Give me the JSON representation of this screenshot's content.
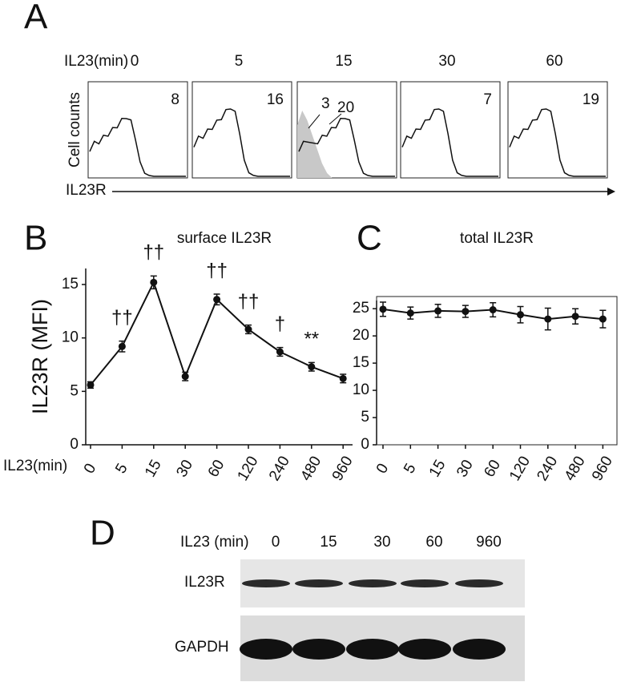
{
  "figure": {
    "panel_labels": [
      "A",
      "B",
      "C",
      "D"
    ]
  },
  "flow": {
    "x_title": "IL23(min)",
    "times": [
      0,
      5,
      15,
      30,
      60
    ],
    "mfi": [
      8,
      16,
      20,
      7,
      19
    ],
    "control_mfi": 3,
    "y_label": "Cell counts",
    "x_label": "IL23R"
  },
  "chart_data": [
    {
      "type": "line",
      "title": "surface IL23R",
      "y_label": "IL23R (MFI)",
      "x_label": "IL23(min)",
      "categories": [
        "0",
        "5",
        "15",
        "30",
        "60",
        "120",
        "240",
        "480",
        "960"
      ],
      "values": [
        5.6,
        9.2,
        15.2,
        6.4,
        13.6,
        10.8,
        8.7,
        7.3,
        6.2
      ],
      "errors": [
        0.3,
        0.5,
        0.6,
        0.4,
        0.5,
        0.4,
        0.4,
        0.4,
        0.4
      ],
      "annotations": [
        null,
        "††",
        "††",
        null,
        "††",
        "††",
        "†",
        "**",
        null
      ],
      "ylim": [
        0,
        16.5
      ],
      "yticks": [
        0,
        5,
        10,
        15
      ],
      "color": "#111"
    },
    {
      "type": "line",
      "title": "total IL23R",
      "categories": [
        "0",
        "5",
        "15",
        "30",
        "60",
        "120",
        "240",
        "480",
        "960"
      ],
      "values": [
        24.9,
        24.2,
        24.6,
        24.5,
        24.8,
        23.9,
        23.1,
        23.6,
        23.1
      ],
      "errors": [
        1.3,
        1.1,
        1.2,
        1.1,
        1.3,
        1.5,
        2.0,
        1.4,
        1.6
      ],
      "ylim": [
        0,
        26.5
      ],
      "yticks": [
        0,
        5,
        10,
        15,
        20,
        25
      ],
      "color": "#111"
    }
  ],
  "blot": {
    "x_title": "IL23 (min)",
    "times": [
      0,
      15,
      30,
      60,
      960
    ],
    "rows": [
      "IL23R",
      "GAPDH"
    ]
  }
}
